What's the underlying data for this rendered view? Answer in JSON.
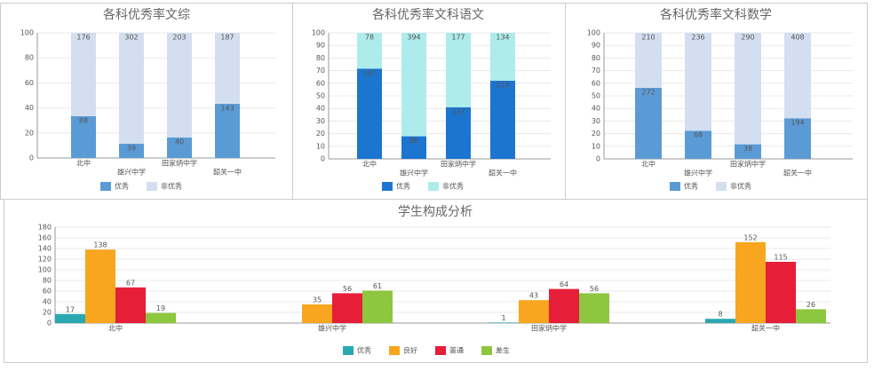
{
  "chart_data": [
    {
      "type": "bar",
      "stacked": true,
      "normalize": true,
      "title": "各科优秀率文综",
      "categories": [
        "北中",
        "雄兴中学",
        "田家炳中学",
        "韶关一中"
      ],
      "series": [
        {
          "name": "优秀",
          "color": "#5b9bd5",
          "values": [
            88,
            39,
            40,
            143
          ]
        },
        {
          "name": "非优秀",
          "color": "#d3dff0",
          "values": [
            176,
            302,
            203,
            187
          ]
        }
      ],
      "ylim": [
        0,
        100
      ],
      "yticks": [
        0,
        20,
        40,
        60,
        80,
        100
      ],
      "grid": true,
      "legend": "bottom"
    },
    {
      "type": "bar",
      "stacked": true,
      "normalize": true,
      "title": "各科优秀率文科语文",
      "categories": [
        "北中",
        "雄兴中学",
        "田家炳中学",
        "韶关一中"
      ],
      "series": [
        {
          "name": "优秀",
          "color": "#1c75cf",
          "values": [
            197,
            86,
            123,
            219
          ]
        },
        {
          "name": "非优秀",
          "color": "#aeeceb",
          "values": [
            78,
            394,
            177,
            134
          ]
        }
      ],
      "ylim": [
        0,
        100
      ],
      "yticks": [
        0,
        10,
        20,
        30,
        40,
        50,
        60,
        70,
        80,
        90,
        100
      ],
      "grid": true,
      "legend": "bottom"
    },
    {
      "type": "bar",
      "stacked": true,
      "normalize": true,
      "title": "各科优秀率文科数学",
      "categories": [
        "北中",
        "雄兴中学",
        "田家炳中学",
        "韶关一中"
      ],
      "series": [
        {
          "name": "优秀",
          "color": "#5b9bd5",
          "values": [
            272,
            68,
            38,
            194
          ]
        },
        {
          "name": "非优秀",
          "color": "#d3dff0",
          "values": [
            210,
            236,
            290,
            408
          ]
        }
      ],
      "ylim": [
        0,
        100
      ],
      "yticks": [
        0,
        10,
        20,
        30,
        40,
        50,
        60,
        70,
        80,
        90,
        100
      ],
      "grid": true,
      "legend": "bottom"
    },
    {
      "type": "bar",
      "stacked": false,
      "normalize": false,
      "title": "学生构成分析",
      "categories": [
        "北中",
        "雄兴中学",
        "田家炳中学",
        "韶关一中"
      ],
      "series": [
        {
          "name": "优秀",
          "color": "#2aa8b2",
          "values": [
            17,
            null,
            1,
            8
          ]
        },
        {
          "name": "良好",
          "color": "#f8a51f",
          "values": [
            138,
            35,
            43,
            152
          ]
        },
        {
          "name": "普通",
          "color": "#e61e38",
          "values": [
            67,
            56,
            64,
            115
          ]
        },
        {
          "name": "差生",
          "color": "#8dc63f",
          "values": [
            19,
            61,
            56,
            26
          ]
        }
      ],
      "ylim": [
        0,
        180
      ],
      "yticks": [
        0,
        20,
        40,
        60,
        80,
        100,
        120,
        140,
        160,
        180
      ],
      "grid": true,
      "legend": "bottom"
    }
  ]
}
